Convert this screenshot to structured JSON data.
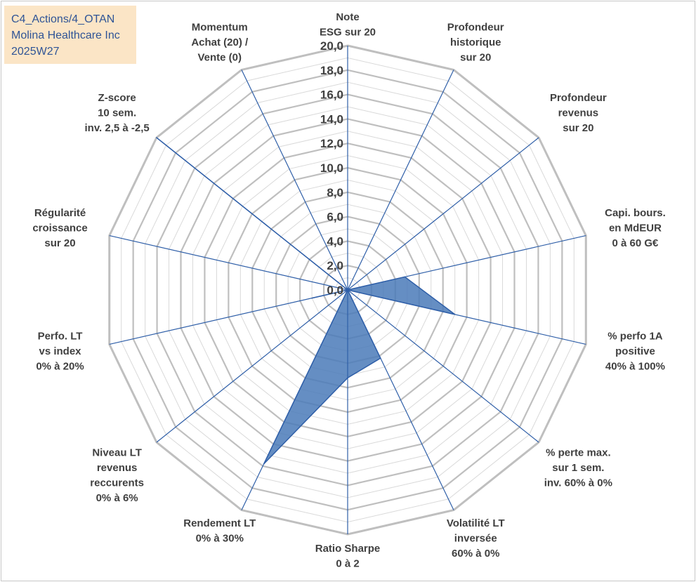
{
  "title_box": {
    "line1": "C4_Actions/4_OTAN",
    "line2": "Molina Healthcare Inc",
    "line3": "2025W27"
  },
  "chart_data": {
    "type": "radar",
    "title": "Molina Healthcare Inc",
    "rlim": [
      0,
      20
    ],
    "ticks": [
      "0,0",
      "2,0",
      "4,0",
      "6,0",
      "8,0",
      "10,0",
      "12,0",
      "14,0",
      "16,0",
      "18,0",
      "20,0"
    ],
    "grid": true,
    "colors": {
      "fill": "#4a7ab8",
      "line": "#2f5fa8",
      "grid_ring": "#bfbfbf",
      "grid_minor": "#d9d9d9"
    },
    "axes": [
      {
        "label": [
          "Note",
          "ESG sur 20"
        ]
      },
      {
        "label": [
          "Profondeur",
          "historique",
          "sur 20"
        ]
      },
      {
        "label": [
          "Profondeur",
          "revenus",
          "sur 20"
        ]
      },
      {
        "label": [
          "Capi. bours.",
          "en MdEUR",
          "0 à 60 G€"
        ]
      },
      {
        "label": [
          "% perfo 1A",
          "positive",
          "40% à 100%"
        ]
      },
      {
        "label": [
          "% perte max.",
          "sur 1 sem.",
          "inv. 60% à 0%"
        ]
      },
      {
        "label": [
          "Volatilité LT",
          "inversée",
          "60% à 0%"
        ]
      },
      {
        "label": [
          "Ratio Sharpe",
          "0 à 2"
        ]
      },
      {
        "label": [
          "Rendement LT",
          "0% à 30%"
        ]
      },
      {
        "label": [
          "Niveau LT",
          "revenus",
          "reccurents",
          "0% à 6%"
        ]
      },
      {
        "label": [
          "Perfo. LT",
          "vs index",
          "0% à 20%"
        ]
      },
      {
        "label": [
          "Régularité",
          "croissance",
          "sur 20"
        ]
      },
      {
        "label": [
          "Z-score",
          "10 sem.",
          "inv. 2,5 à -2,5"
        ]
      },
      {
        "label": [
          "Momentum",
          "Achat (20) /",
          "Vente (0)"
        ]
      }
    ],
    "series": [
      {
        "values": [
          0.0,
          0.0,
          0.0,
          4.8,
          9.0,
          0.0,
          6.2,
          7.2,
          15.8,
          0.0,
          3.0,
          0.0,
          20.0,
          0.0
        ]
      }
    ]
  }
}
